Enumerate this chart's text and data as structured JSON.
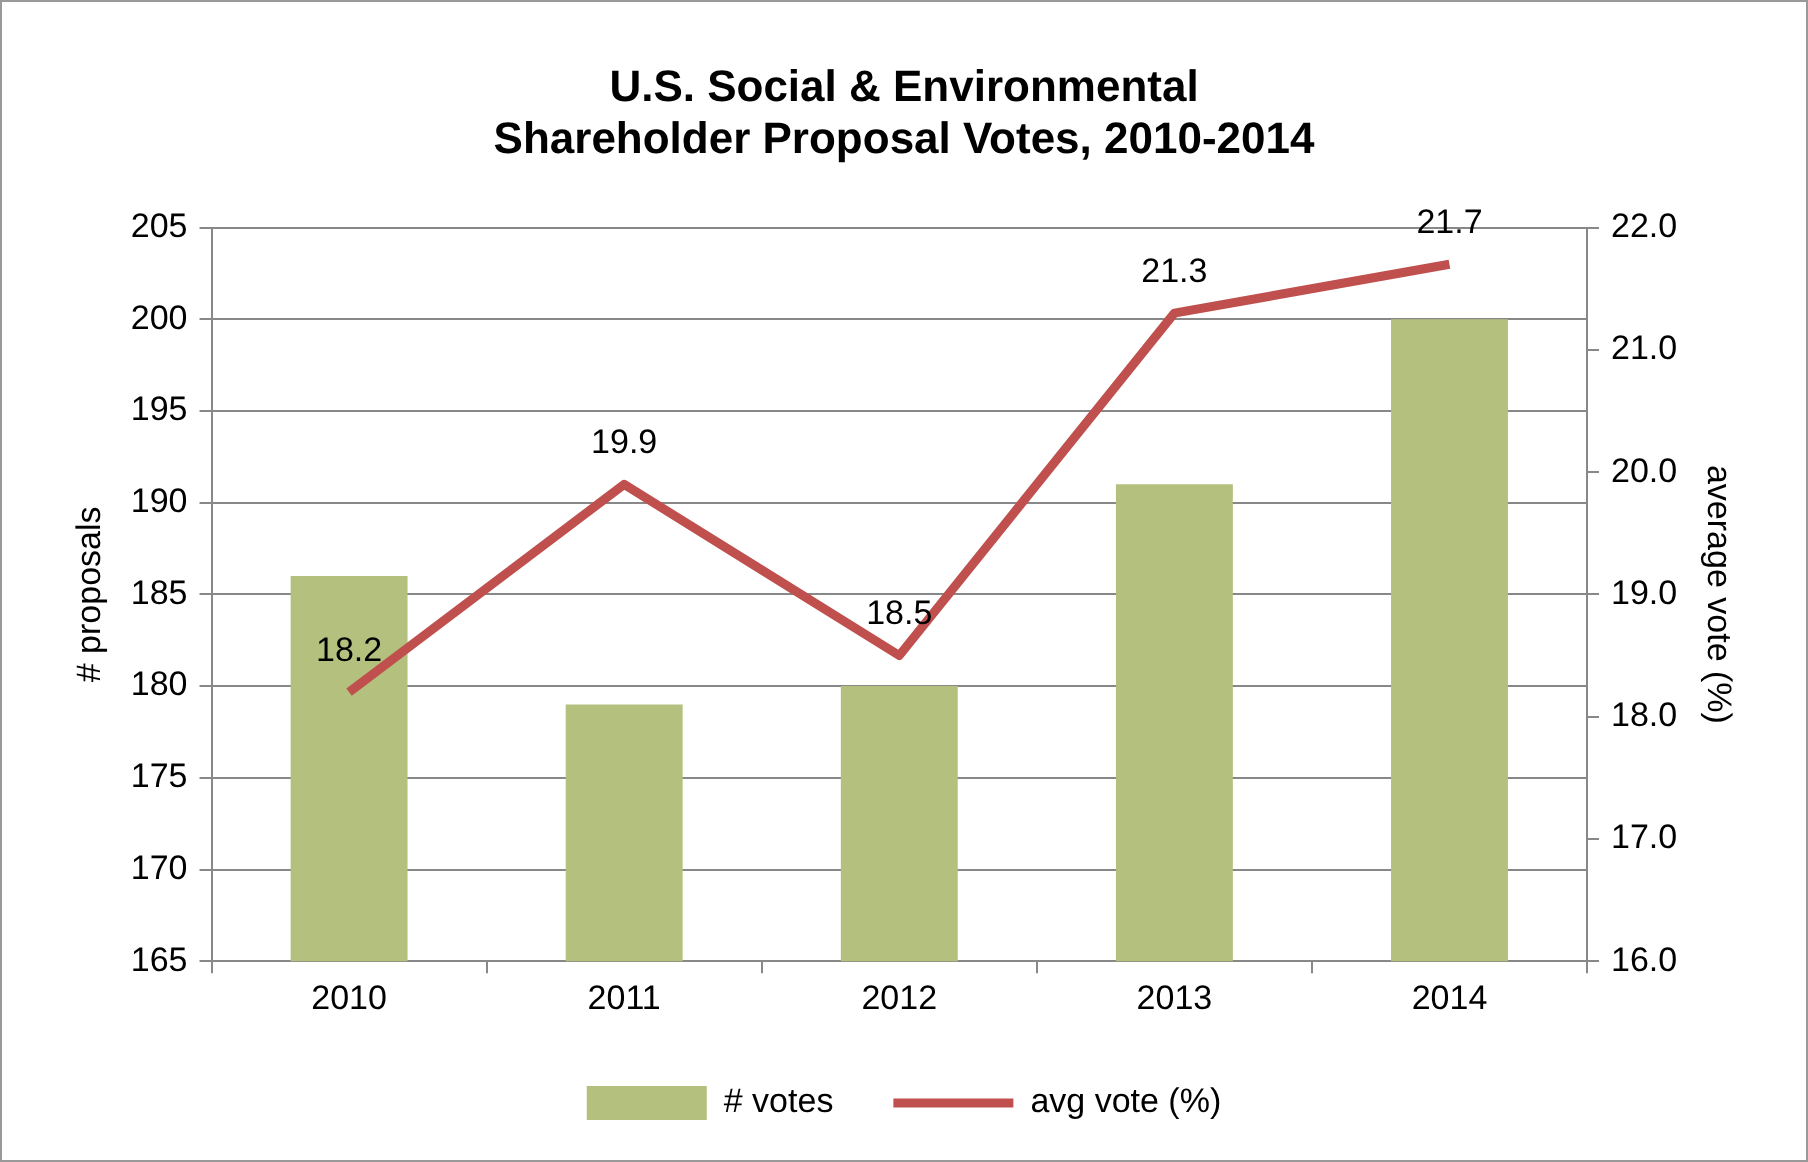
{
  "chart_data": {
    "type": "bar",
    "title": "U.S. Social & Environmental Shareholder Proposal Votes, 2010-2014",
    "ylabel": "# proposals",
    "y2label": "average vote (%)",
    "categories": [
      "2010",
      "2011",
      "2012",
      "2013",
      "2014"
    ],
    "series": [
      {
        "name": "# votes",
        "color": "#b3c07e",
        "values": [
          186,
          179,
          180,
          191,
          200
        ]
      },
      {
        "name": "avg vote (%)",
        "type": "line",
        "axis": "y2",
        "color": "#c0504d",
        "values": [
          18.2,
          19.9,
          18.5,
          21.3,
          21.7
        ],
        "value_labels": [
          "18.2",
          "19.9",
          "18.5",
          "21.3",
          "21.7"
        ]
      }
    ],
    "ylim": [
      165,
      205
    ],
    "yticks": [
      165,
      170,
      175,
      180,
      185,
      190,
      195,
      200,
      205
    ],
    "y2lim": [
      16,
      22
    ],
    "y2ticks": [
      {
        "value": 16,
        "label": "16.0"
      },
      {
        "value": 17,
        "label": "17.0"
      },
      {
        "value": 18,
        "label": "18.0"
      },
      {
        "value": 19,
        "label": "19.0"
      },
      {
        "value": 20,
        "label": "20.0"
      },
      {
        "value": 21,
        "label": "21.0"
      },
      {
        "value": 22,
        "label": "22.0"
      }
    ],
    "grid": "y",
    "legend": "bottom",
    "marker": "none",
    "line_style": "solid"
  }
}
